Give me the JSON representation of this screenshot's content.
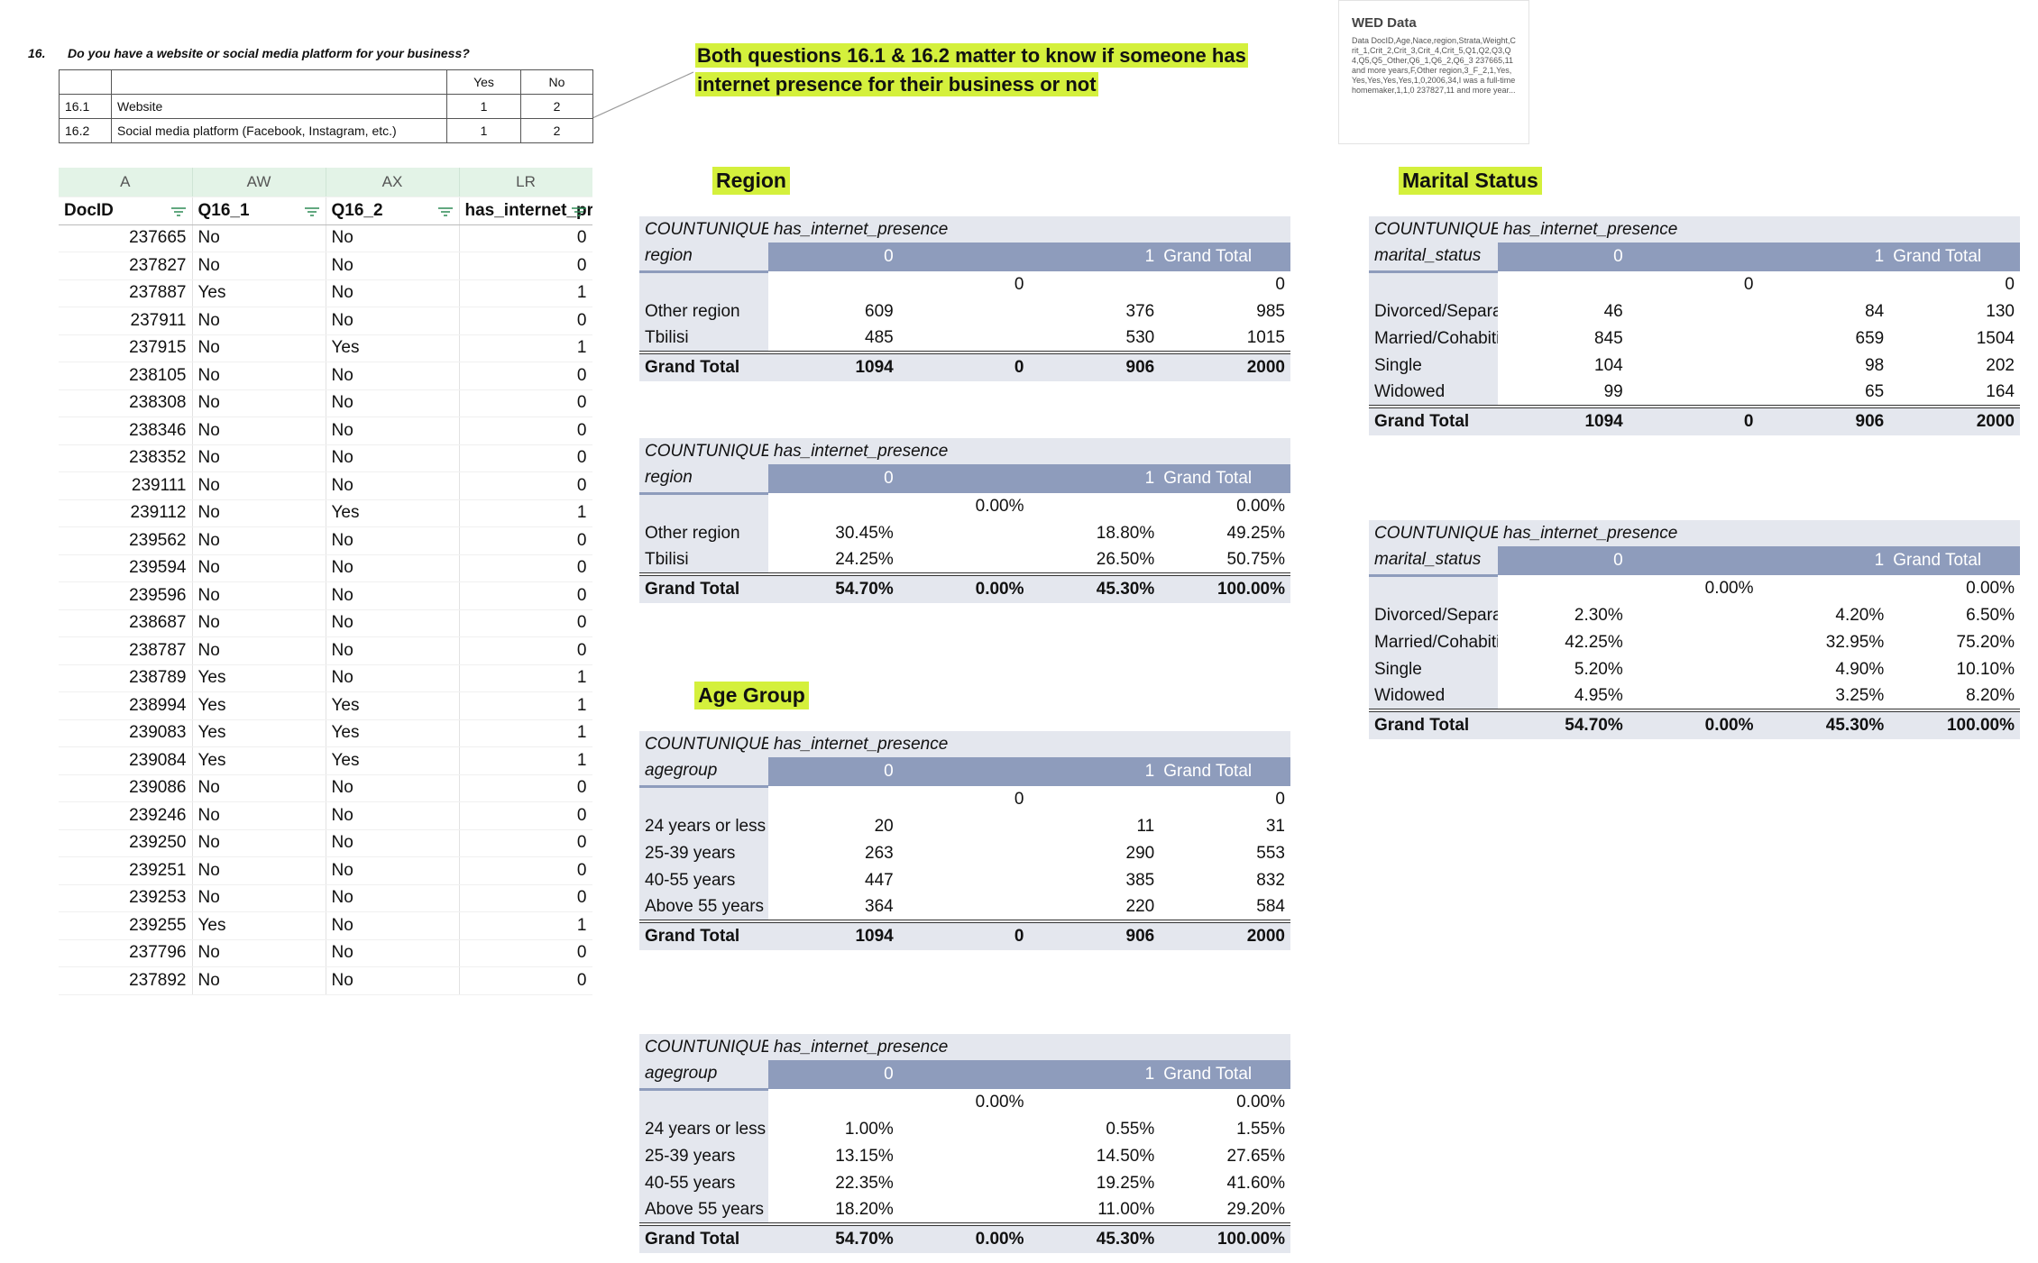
{
  "question": {
    "number": "16.",
    "text": "Do you have a website or social media platform for your business?"
  },
  "question_table": {
    "header": [
      "Yes",
      "No"
    ],
    "rows": [
      [
        "16.1",
        "Website",
        "1",
        "2"
      ],
      [
        "16.2",
        "Social media platform (Facebook, Instagram, etc.)",
        "1",
        "2"
      ]
    ]
  },
  "note": "Both questions 16.1 & 16.2 matter to know if someone has internet presence for their business or not",
  "wed_card": {
    "title": "WED Data",
    "text": "Data DocID,Age,Nace,region,Strata,Weight,Crit_1,Crit_2,Crit_3,Crit_4,Crit_5,Q1,Q2,Q3,Q4,Q5,Q5_Other,Q6_1,Q6_2,Q6_3 237665,11 and more years,F,Other region,3_F_2,1,Yes,Yes,Yes,Yes,Yes,1,0,2006,34,I was a full-time homemaker,1,1,0 237827,11 and more year..."
  },
  "sheet": {
    "columns": [
      "A",
      "AW",
      "AX",
      "LR"
    ],
    "headers": [
      "DocID",
      "Q16_1",
      "Q16_2",
      "has_internet_presence"
    ],
    "rows": [
      [
        237665,
        "No",
        "No",
        0
      ],
      [
        237827,
        "No",
        "No",
        0
      ],
      [
        237887,
        "Yes",
        "No",
        1
      ],
      [
        237911,
        "No",
        "No",
        0
      ],
      [
        237915,
        "No",
        "Yes",
        1
      ],
      [
        238105,
        "No",
        "No",
        0
      ],
      [
        238308,
        "No",
        "No",
        0
      ],
      [
        238346,
        "No",
        "No",
        0
      ],
      [
        238352,
        "No",
        "No",
        0
      ],
      [
        239111,
        "No",
        "No",
        0
      ],
      [
        239112,
        "No",
        "Yes",
        1
      ],
      [
        239562,
        "No",
        "No",
        0
      ],
      [
        239594,
        "No",
        "No",
        0
      ],
      [
        239596,
        "No",
        "No",
        0
      ],
      [
        238687,
        "No",
        "No",
        0
      ],
      [
        238787,
        "No",
        "No",
        0
      ],
      [
        238789,
        "Yes",
        "No",
        1
      ],
      [
        238994,
        "Yes",
        "Yes",
        1
      ],
      [
        239083,
        "Yes",
        "Yes",
        1
      ],
      [
        239084,
        "Yes",
        "Yes",
        1
      ],
      [
        239086,
        "No",
        "No",
        0
      ],
      [
        239246,
        "No",
        "No",
        0
      ],
      [
        239250,
        "No",
        "No",
        0
      ],
      [
        239251,
        "No",
        "No",
        0
      ],
      [
        239253,
        "No",
        "No",
        0
      ],
      [
        239255,
        "Yes",
        "No",
        1
      ],
      [
        237796,
        "No",
        "No",
        0
      ],
      [
        237892,
        "No",
        "No",
        0
      ]
    ]
  },
  "sections": {
    "region": {
      "label": "Region",
      "pivots": [
        {
          "value_label": "COUNTUNIQUE",
          "column_field": "has_internet_presence",
          "row_field": "region",
          "columns": [
            "0",
            null,
            "1",
            "Grand Total"
          ],
          "rows": [
            {
              "label": null,
              "values": [
                null,
                0,
                null,
                0
              ]
            },
            {
              "label": "Other region",
              "values": [
                609,
                null,
                376,
                985
              ]
            },
            {
              "label": "Tbilisi",
              "values": [
                485,
                null,
                530,
                1015
              ]
            }
          ],
          "total": {
            "label": "Grand Total",
            "values": [
              1094,
              0,
              906,
              2000
            ]
          }
        },
        {
          "value_label": "COUNTUNIQUE",
          "column_field": "has_internet_presence",
          "row_field": "region",
          "columns": [
            "0",
            null,
            "1",
            "Grand Total"
          ],
          "rows": [
            {
              "label": null,
              "values": [
                null,
                "0.00%",
                null,
                "0.00%"
              ]
            },
            {
              "label": "Other region",
              "values": [
                "30.45%",
                null,
                "18.80%",
                "49.25%"
              ]
            },
            {
              "label": "Tbilisi",
              "values": [
                "24.25%",
                null,
                "26.50%",
                "50.75%"
              ]
            }
          ],
          "total": {
            "label": "Grand Total",
            "values": [
              "54.70%",
              "0.00%",
              "45.30%",
              "100.00%"
            ]
          }
        }
      ]
    },
    "age_group": {
      "label": "Age Group",
      "pivots": [
        {
          "value_label": "COUNTUNIQUE",
          "column_field": "has_internet_presence",
          "row_field": "agegroup",
          "columns": [
            "0",
            null,
            "1",
            "Grand Total"
          ],
          "rows": [
            {
              "label": null,
              "values": [
                null,
                0,
                null,
                0
              ]
            },
            {
              "label": "24 years or less",
              "values": [
                20,
                null,
                11,
                31
              ]
            },
            {
              "label": "25-39 years",
              "values": [
                263,
                null,
                290,
                553
              ]
            },
            {
              "label": "40-55 years",
              "values": [
                447,
                null,
                385,
                832
              ]
            },
            {
              "label": "Above 55 years",
              "values": [
                364,
                null,
                220,
                584
              ]
            }
          ],
          "total": {
            "label": "Grand Total",
            "values": [
              1094,
              0,
              906,
              2000
            ]
          }
        },
        {
          "value_label": "COUNTUNIQUE",
          "column_field": "has_internet_presence",
          "row_field": "agegroup",
          "columns": [
            "0",
            null,
            "1",
            "Grand Total"
          ],
          "rows": [
            {
              "label": null,
              "values": [
                null,
                "0.00%",
                null,
                "0.00%"
              ]
            },
            {
              "label": "24 years or less",
              "values": [
                "1.00%",
                null,
                "0.55%",
                "1.55%"
              ]
            },
            {
              "label": "25-39 years",
              "values": [
                "13.15%",
                null,
                "14.50%",
                "27.65%"
              ]
            },
            {
              "label": "40-55 years",
              "values": [
                "22.35%",
                null,
                "19.25%",
                "41.60%"
              ]
            },
            {
              "label": "Above 55 years",
              "values": [
                "18.20%",
                null,
                "11.00%",
                "29.20%"
              ]
            }
          ],
          "total": {
            "label": "Grand Total",
            "values": [
              "54.70%",
              "0.00%",
              "45.30%",
              "100.00%"
            ]
          }
        }
      ]
    },
    "marital_status": {
      "label": "Marital Status",
      "pivots": [
        {
          "value_label": "COUNTUNIQUE",
          "column_field": "has_internet_presence",
          "row_field": "marital_status",
          "columns": [
            "0",
            null,
            "1",
            "Grand Total"
          ],
          "rows": [
            {
              "label": null,
              "values": [
                null,
                0,
                null,
                0
              ]
            },
            {
              "label": "Divorced/Separated",
              "values": [
                46,
                null,
                84,
                130
              ]
            },
            {
              "label": "Married/Cohabiting",
              "values": [
                845,
                null,
                659,
                1504
              ]
            },
            {
              "label": "Single",
              "values": [
                104,
                null,
                98,
                202
              ]
            },
            {
              "label": "Widowed",
              "values": [
                99,
                null,
                65,
                164
              ]
            }
          ],
          "total": {
            "label": "Grand Total",
            "values": [
              1094,
              0,
              906,
              2000
            ]
          }
        },
        {
          "value_label": "COUNTUNIQUE",
          "column_field": "has_internet_presence",
          "row_field": "marital_status",
          "columns": [
            "0",
            null,
            "1",
            "Grand Total"
          ],
          "rows": [
            {
              "label": null,
              "values": [
                null,
                "0.00%",
                null,
                "0.00%"
              ]
            },
            {
              "label": "Divorced/Separated",
              "values": [
                "2.30%",
                null,
                "4.20%",
                "6.50%"
              ]
            },
            {
              "label": "Married/Cohabiting",
              "values": [
                "42.25%",
                null,
                "32.95%",
                "75.20%"
              ]
            },
            {
              "label": "Single",
              "values": [
                "5.20%",
                null,
                "4.90%",
                "10.10%"
              ]
            },
            {
              "label": "Widowed",
              "values": [
                "4.95%",
                null,
                "3.25%",
                "8.20%"
              ]
            }
          ],
          "total": {
            "label": "Grand Total",
            "values": [
              "54.70%",
              "0.00%",
              "45.30%",
              "100.00%"
            ]
          }
        }
      ]
    }
  }
}
